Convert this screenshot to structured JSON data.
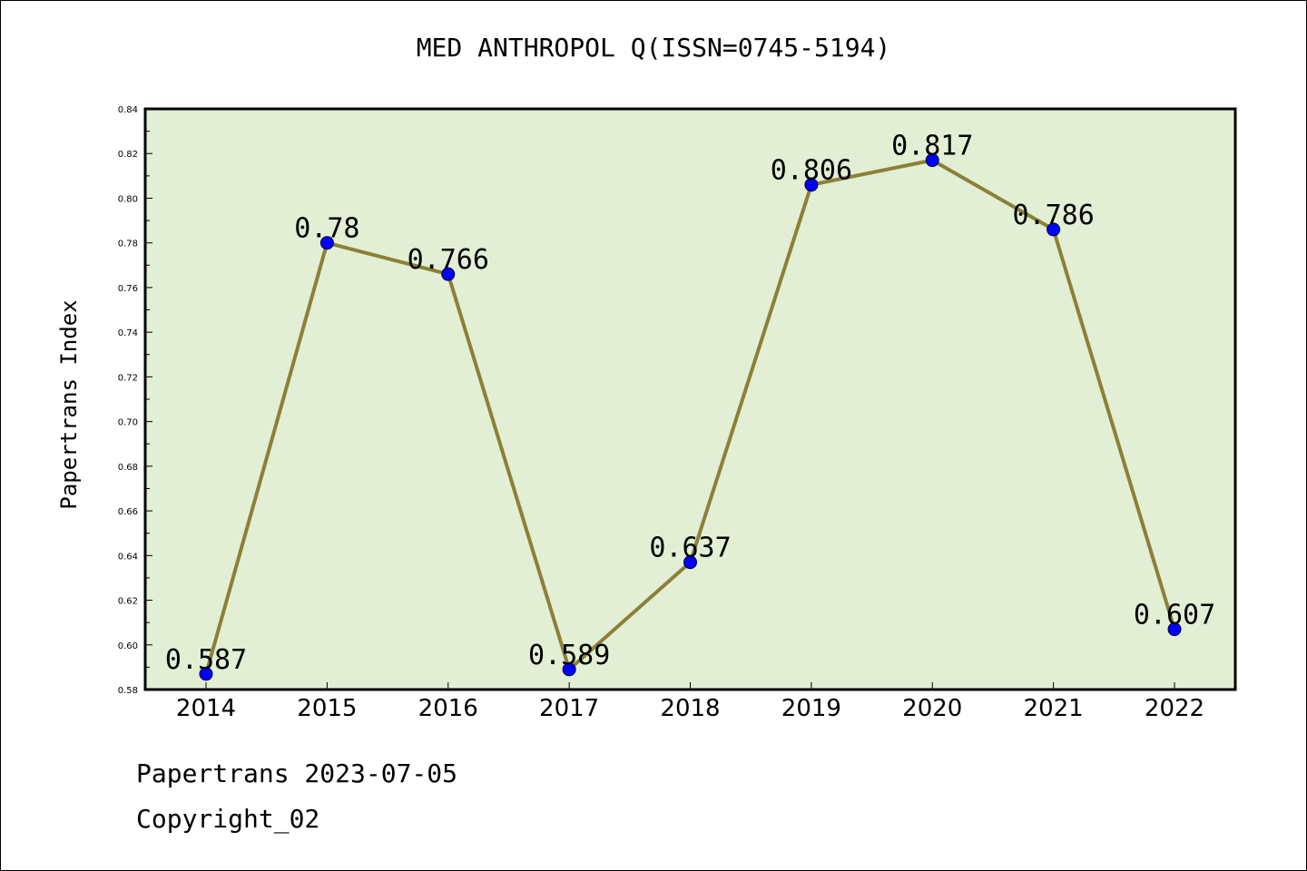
{
  "title": "MED ANTHROPOL Q(ISSN=0745-5194)",
  "footer": {
    "line1": "Papertrans 2023-07-05",
    "line2": "Copyright_02"
  },
  "colors": {
    "plot_background": "#e2efd5",
    "line": "#8c8038",
    "marker": "#0000ff"
  },
  "chart_data": {
    "type": "line",
    "title": "MED ANTHROPOL Q(ISSN=0745-5194)",
    "xlabel": "",
    "ylabel": "Papertrans Index",
    "x": [
      "2014",
      "2015",
      "2016",
      "2017",
      "2018",
      "2019",
      "2020",
      "2021",
      "2022"
    ],
    "series": [
      {
        "values": [
          0.587,
          0.78,
          0.766,
          0.589,
          0.637,
          0.806,
          0.817,
          0.786,
          0.607
        ],
        "labels": [
          "0.587",
          "0.78",
          "0.766",
          "0.589",
          "0.637",
          "0.806",
          "0.817",
          "0.786",
          "0.607"
        ]
      }
    ],
    "ylim": [
      0.58,
      0.84
    ],
    "yticks": [
      "0.58",
      "0.60",
      "0.62",
      "0.64",
      "0.66",
      "0.68",
      "0.70",
      "0.72",
      "0.74",
      "0.76",
      "0.78",
      "0.80",
      "0.82",
      "0.84"
    ],
    "grid": false,
    "legend": "none"
  }
}
